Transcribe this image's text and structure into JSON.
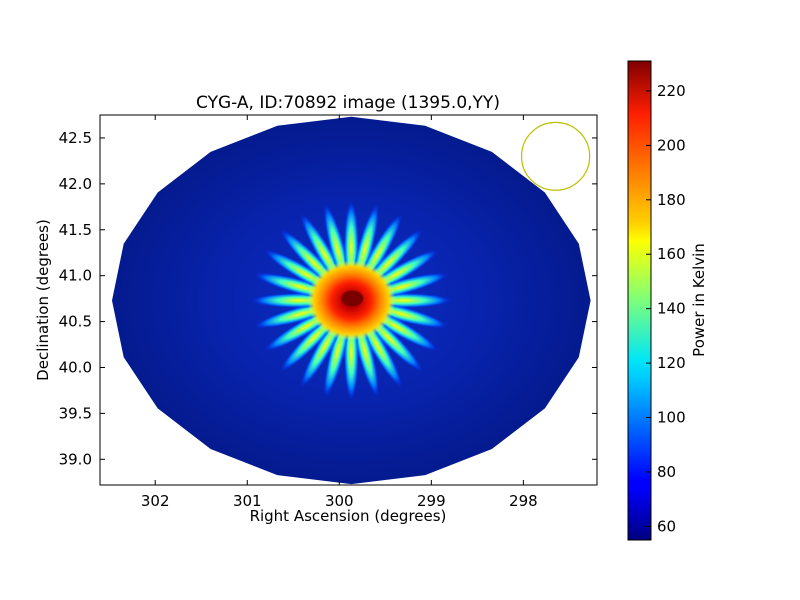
{
  "chart_data": {
    "type": "heatmap",
    "title": "CYG-A, ID:70892 image (1395.0,YY)",
    "xlabel": "Right Ascension (degrees)",
    "ylabel": "Declination (degrees)",
    "xlim": [
      302.6,
      297.2
    ],
    "ylim": [
      38.72,
      42.75
    ],
    "x_ticks": [
      302,
      301,
      300,
      299,
      298
    ],
    "y_ticks": [
      39.0,
      39.5,
      40.0,
      40.5,
      41.0,
      41.5,
      42.0,
      42.5
    ],
    "x_tick_labels": [
      "302",
      "301",
      "300",
      "299",
      "298"
    ],
    "y_tick_labels": [
      "39.0",
      "39.5",
      "40.0",
      "40.5",
      "41.0",
      "41.5",
      "42.0",
      "42.5"
    ],
    "colorbar": {
      "label": "Power in Kelvin",
      "range": [
        55,
        231
      ],
      "ticks": [
        60,
        80,
        100,
        120,
        140,
        160,
        180,
        200,
        220
      ],
      "tick_labels": [
        "60",
        "80",
        "100",
        "120",
        "140",
        "160",
        "180",
        "200",
        "220"
      ],
      "colormap": "jet"
    },
    "source": {
      "ra": 299.87,
      "dec": 40.73,
      "peak_kelvin": 231,
      "spikes": 24
    },
    "field_of_view": {
      "center_ra": 299.87,
      "center_dec": 40.73,
      "radius_ra": 2.6,
      "radius_dec": 2.0,
      "background_kelvin": 62
    },
    "beam": {
      "ra": 297.65,
      "dec": 42.3,
      "radius_deg": 0.37,
      "color": "#bfbf00"
    }
  }
}
